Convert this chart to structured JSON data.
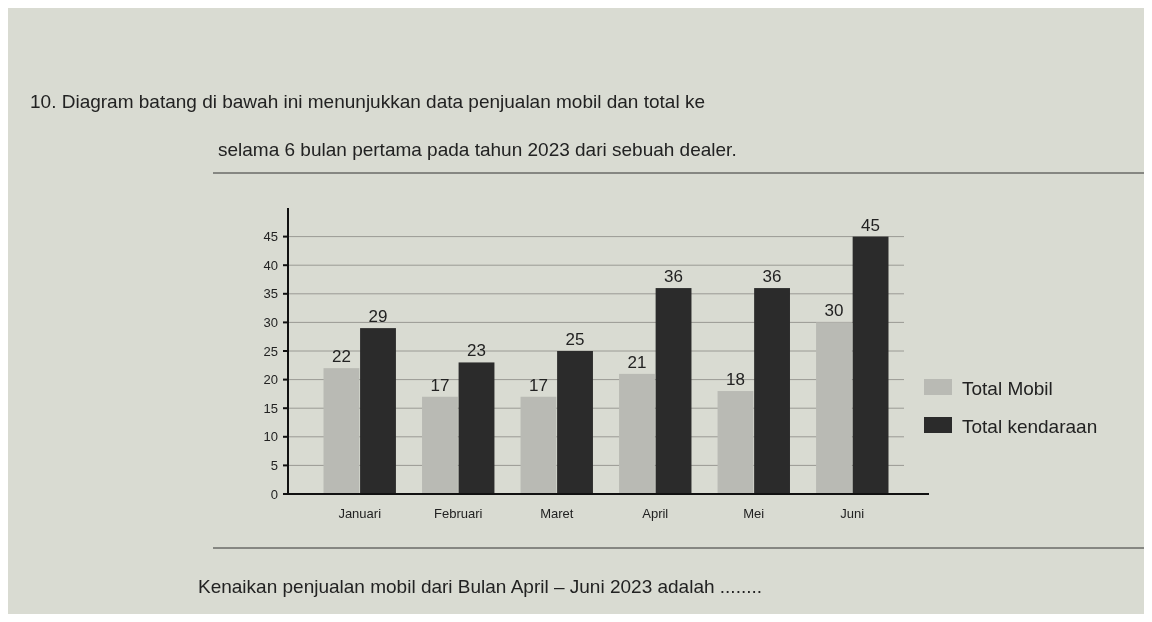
{
  "chart_data": {
    "type": "bar",
    "title": "10. Diagram batang di bawah ini menunjukkan data penjualan mobil dan total ke",
    "subtitle": "selama 6 bulan pertama pada tahun 2023 dari sebuah dealer.",
    "categories": [
      "Januari",
      "Februari",
      "Maret",
      "April",
      "Mei",
      "Juni"
    ],
    "series": [
      {
        "name": "Total Mobil",
        "color": "#b9bab4",
        "values": [
          22,
          17,
          17,
          21,
          18,
          30
        ]
      },
      {
        "name": "Total kendaraan",
        "color": "#2b2b2b",
        "values": [
          29,
          23,
          25,
          36,
          36,
          45
        ]
      }
    ],
    "ylim": [
      0,
      50
    ],
    "yticks": [
      0,
      5,
      10,
      15,
      20,
      25,
      30,
      35,
      40,
      45
    ],
    "grid": "y",
    "legend": "right",
    "data_labels": true,
    "annotations": [
      "Kenaikan penjualan mobil dari Bulan April – Juni 2023 adalah ........"
    ]
  }
}
